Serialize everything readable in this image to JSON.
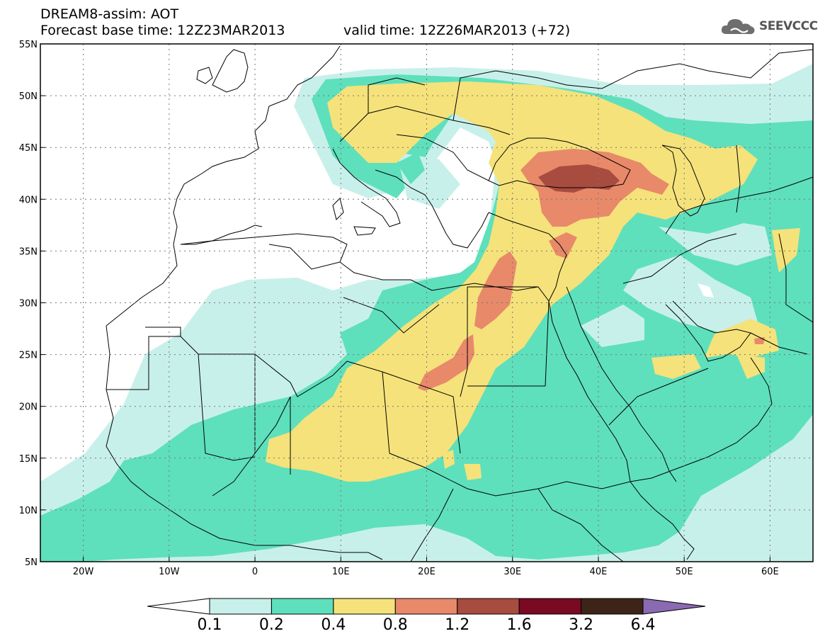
{
  "title": {
    "model_line": "DREAM8-assim: AOT",
    "base_time_line": "Forecast base time: 12Z23MAR2013",
    "valid_time_line": "valid time: 12Z26MAR2013 (+72)"
  },
  "logo": {
    "text": "SEEVCCC",
    "icon": "cloud-icon"
  },
  "map": {
    "projection": "lat-lon",
    "lon_range": [
      -25,
      65
    ],
    "lat_range": [
      5,
      55
    ],
    "grid": true,
    "lon_ticks": [
      {
        "value": -20,
        "label": "20W"
      },
      {
        "value": -10,
        "label": "10W"
      },
      {
        "value": 0,
        "label": "0"
      },
      {
        "value": 10,
        "label": "10E"
      },
      {
        "value": 20,
        "label": "20E"
      },
      {
        "value": 30,
        "label": "30E"
      },
      {
        "value": 40,
        "label": "40E"
      },
      {
        "value": 50,
        "label": "50E"
      },
      {
        "value": 60,
        "label": "60E"
      }
    ],
    "lat_ticks": [
      {
        "value": 55,
        "label": "55N"
      },
      {
        "value": 50,
        "label": "50N"
      },
      {
        "value": 45,
        "label": "45N"
      },
      {
        "value": 40,
        "label": "40N"
      },
      {
        "value": 35,
        "label": "35N"
      },
      {
        "value": 30,
        "label": "30N"
      },
      {
        "value": 25,
        "label": "25N"
      },
      {
        "value": 20,
        "label": "20N"
      },
      {
        "value": 15,
        "label": "15N"
      },
      {
        "value": 10,
        "label": "10N"
      },
      {
        "value": 5,
        "label": "5N"
      }
    ]
  },
  "colorbar": {
    "bins": [
      {
        "color": "#c8f0ea"
      },
      {
        "color": "#5ee0bc"
      },
      {
        "color": "#f5e27a"
      },
      {
        "color": "#e8896a"
      },
      {
        "color": "#a84c40"
      },
      {
        "color": "#7a0a22"
      },
      {
        "color": "#3e2418"
      }
    ],
    "under_color": "#ffffff",
    "over_color": "#8a6ab0",
    "levels": [
      {
        "value": 0.1,
        "label": "0.1"
      },
      {
        "value": 0.2,
        "label": "0.2"
      },
      {
        "value": 0.4,
        "label": "0.4"
      },
      {
        "value": 0.8,
        "label": "0.8"
      },
      {
        "value": 1.2,
        "label": "1.2"
      },
      {
        "value": 1.6,
        "label": "1.6"
      },
      {
        "value": 3.2,
        "label": "3.2"
      },
      {
        "value": 6.4,
        "label": "6.4"
      }
    ]
  }
}
